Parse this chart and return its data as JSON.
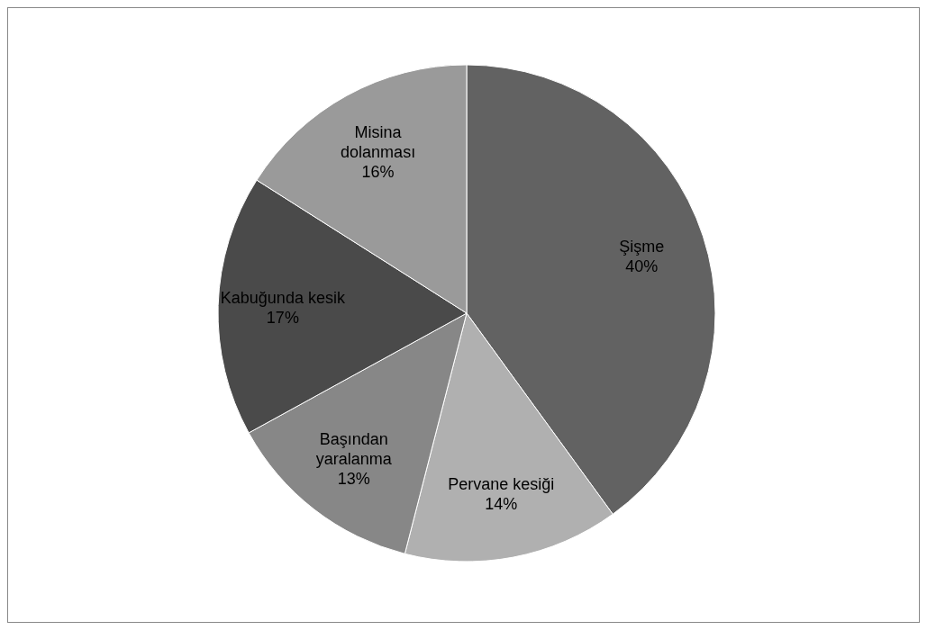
{
  "chart_data": {
    "type": "pie",
    "categories": [
      "Şişme",
      "Pervane kesiği",
      "Başından yaralanma",
      "Kabuğunda kesik",
      "Misina dolanması"
    ],
    "values": [
      40,
      14,
      13,
      17,
      16
    ],
    "colors": [
      "#626262",
      "#b0b0b0",
      "#878787",
      "#4a4a4a",
      "#9a9a9a"
    ],
    "value_labels": [
      "40%",
      "14%",
      "13%",
      "17%",
      "16%"
    ]
  }
}
